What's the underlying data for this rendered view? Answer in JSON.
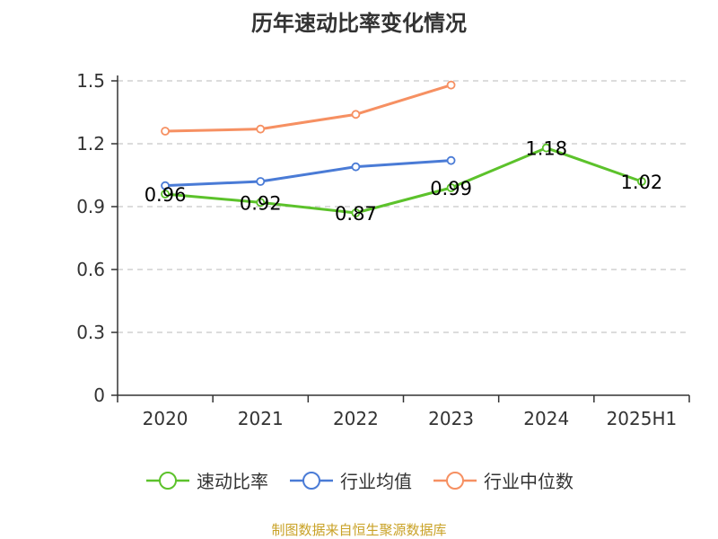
{
  "title": "历年速动比率变化情况",
  "source_note": "制图数据来自恒生聚源数据库",
  "colors": {
    "速动比率": "#5cc22b",
    "行业均值": "#4a7bd6",
    "行业中位数": "#f69062",
    "grid": "#c8c8c8",
    "axis": "#333333"
  },
  "chart_data": {
    "type": "line",
    "title": "历年速动比率变化情况",
    "categories": [
      "2020",
      "2021",
      "2022",
      "2023",
      "2024",
      "2025H1"
    ],
    "ylim": [
      0,
      1.5
    ],
    "yticks": [
      "0",
      "0.3",
      "0.6",
      "0.9",
      "1.2",
      "1.5"
    ],
    "grid": true,
    "legend_position": "bottom",
    "series": [
      {
        "name": "速动比率",
        "values": [
          0.96,
          0.92,
          0.87,
          0.99,
          1.18,
          1.02
        ],
        "labels": [
          "0.96",
          "0.92",
          "0.87",
          "0.99",
          "1.18",
          "1.02"
        ]
      },
      {
        "name": "行业均值",
        "values": [
          1.0,
          1.02,
          1.09,
          1.12,
          null,
          null
        ]
      },
      {
        "name": "行业中位数",
        "values": [
          1.26,
          1.27,
          1.34,
          1.48,
          null,
          null
        ]
      }
    ]
  }
}
